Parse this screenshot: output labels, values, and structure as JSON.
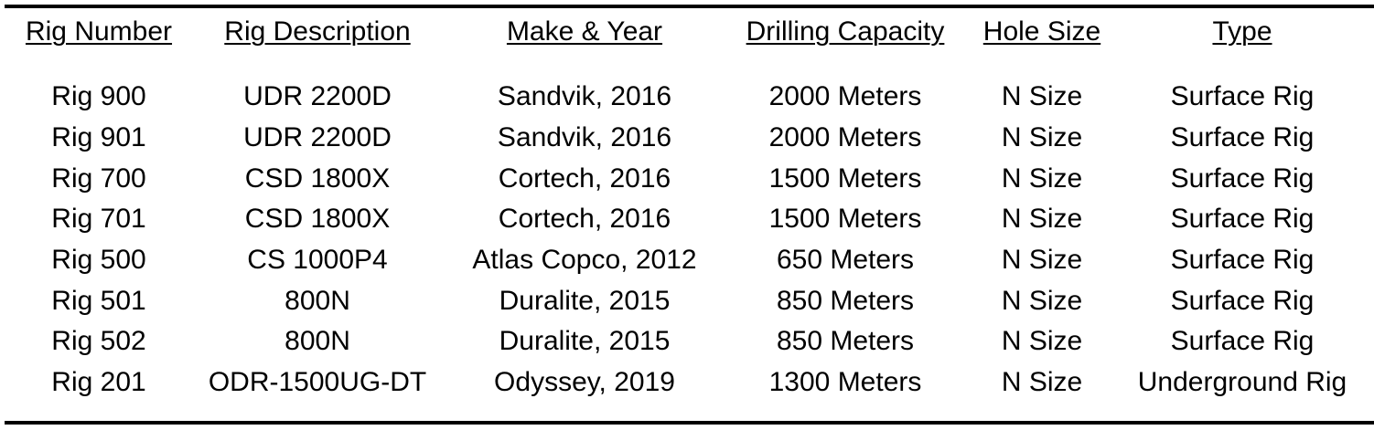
{
  "table": {
    "headers": [
      "Rig Number",
      "Rig Description",
      "Make & Year",
      "Drilling Capacity",
      "Hole Size",
      "Type"
    ],
    "rows": [
      [
        "Rig 900",
        "UDR 2200D",
        "Sandvik, 2016",
        "2000 Meters",
        "N Size",
        "Surface Rig"
      ],
      [
        "Rig 901",
        "UDR 2200D",
        "Sandvik, 2016",
        "2000 Meters",
        "N Size",
        "Surface Rig"
      ],
      [
        "Rig 700",
        "CSD 1800X",
        "Cortech, 2016",
        "1500 Meters",
        "N Size",
        "Surface Rig"
      ],
      [
        "Rig 701",
        "CSD 1800X",
        "Cortech, 2016",
        "1500 Meters",
        "N Size",
        "Surface Rig"
      ],
      [
        "Rig 500",
        "CS 1000P4",
        "Atlas Copco, 2012",
        "650 Meters",
        "N Size",
        "Surface Rig"
      ],
      [
        "Rig 501",
        "800N",
        "Duralite, 2015",
        "850 Meters",
        "N Size",
        "Surface Rig"
      ],
      [
        "Rig 502",
        "800N",
        "Duralite, 2015",
        "850 Meters",
        "N Size",
        "Surface Rig"
      ],
      [
        "Rig 201",
        "ODR-1500UG-DT",
        "Odyssey, 2019",
        "1300 Meters",
        "N Size",
        "Underground Rig"
      ]
    ]
  }
}
